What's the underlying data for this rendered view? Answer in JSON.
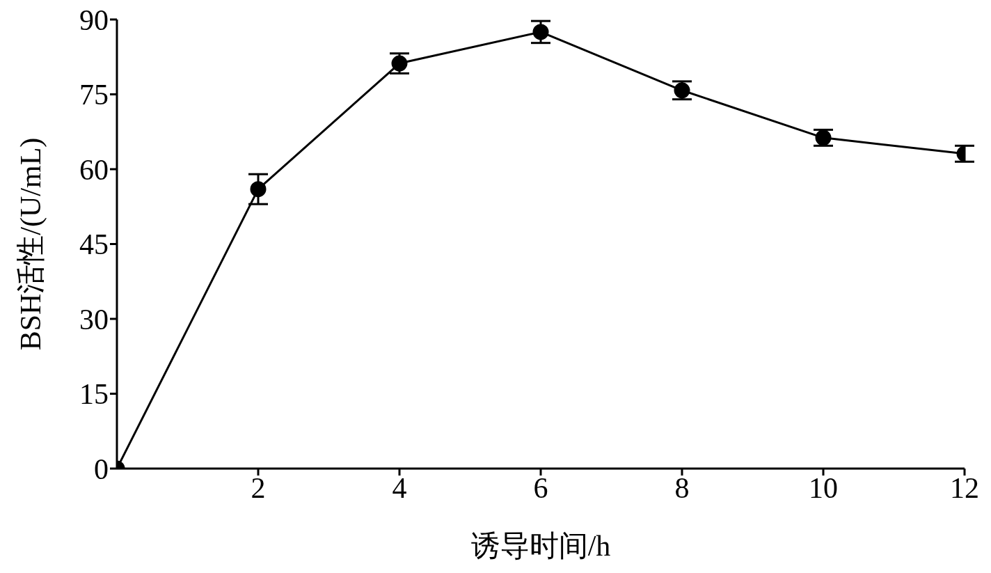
{
  "chart_data": {
    "type": "line",
    "xlabel": "诱导时间/h",
    "ylabel": "BSH活性/(U/mL)",
    "x": [
      0,
      2,
      4,
      6,
      8,
      10,
      12
    ],
    "series": [
      {
        "color": "#000000",
        "values": [
          0,
          56,
          81.2,
          87.5,
          75.8,
          66.3,
          63.1
        ],
        "errors": [
          null,
          3,
          2,
          2.2,
          1.8,
          1.6,
          1.6
        ]
      }
    ],
    "xlim": [
      0,
      12
    ],
    "xticks": [
      2,
      4,
      6,
      8,
      10,
      12
    ],
    "ylim": [
      0,
      90
    ],
    "yticks": [
      0,
      15,
      30,
      45,
      60,
      75,
      90
    ],
    "grid": false,
    "legend": false,
    "marker": "circle",
    "line_style": "solid"
  }
}
